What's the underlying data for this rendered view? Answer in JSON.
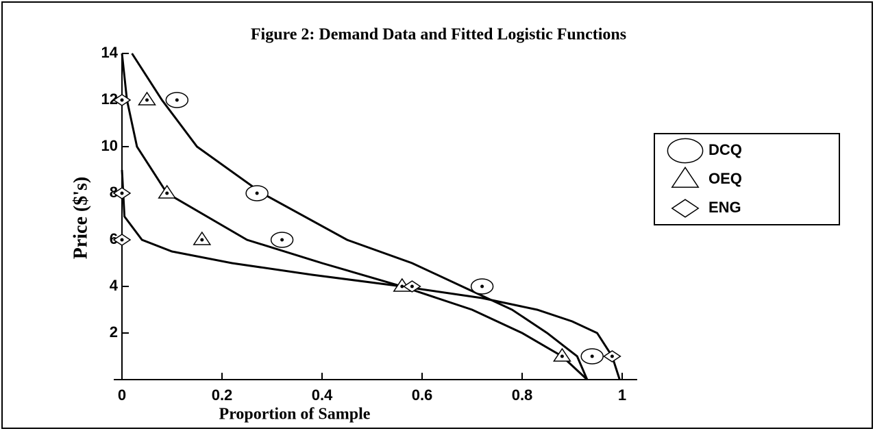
{
  "chart_data": {
    "type": "scatter",
    "title": "Figure 2:  Demand Data and Fitted Logistic Functions",
    "x_label": "Proportion of Sample",
    "y_label": "Price ($'s)",
    "xlim": [
      0,
      1.03
    ],
    "ylim": [
      0,
      14
    ],
    "xticks": [
      0,
      0.2,
      0.4,
      0.6,
      0.8,
      1
    ],
    "yticks": [
      2,
      4,
      6,
      8,
      10,
      12,
      14
    ],
    "series": [
      {
        "name": "DCQ",
        "color": "#000000",
        "marker": "circle",
        "x": [
          0.11,
          0.27,
          0.32,
          0.72,
          0.94
        ],
        "values": [
          12,
          8,
          6,
          4,
          1
        ]
      },
      {
        "name": "OEQ",
        "color": "#000000",
        "marker": "triangle",
        "x": [
          0.05,
          0.09,
          0.16,
          0.56,
          0.88
        ],
        "values": [
          12,
          8,
          6,
          4,
          1
        ]
      },
      {
        "name": "ENG",
        "color": "#000000",
        "marker": "diamond",
        "x": [
          0,
          0,
          0,
          0.58,
          0.98
        ],
        "values": [
          12,
          8,
          6,
          4,
          1
        ]
      }
    ],
    "fits": [
      {
        "color": "#000000",
        "x": [
          0.02,
          0.08,
          0.15,
          0.28,
          0.45,
          0.58,
          0.68,
          0.78,
          0.85,
          0.91,
          0.93
        ],
        "values": [
          14,
          12,
          10,
          8,
          6,
          5,
          4,
          3,
          2,
          1,
          0
        ]
      },
      {
        "color": "#000000",
        "x": [
          0.0,
          0.01,
          0.03,
          0.09,
          0.25,
          0.4,
          0.56,
          0.7,
          0.8,
          0.88,
          0.93
        ],
        "values": [
          14,
          12,
          10,
          8,
          6,
          5,
          4,
          3,
          2,
          1,
          0
        ]
      },
      {
        "color": "#000000",
        "x": [
          0.0,
          0.005,
          0.04,
          0.1,
          0.22,
          0.38,
          0.56,
          0.72,
          0.83,
          0.9,
          0.95,
          0.98,
          0.995
        ],
        "values": [
          9,
          7,
          6,
          5.5,
          5,
          4.5,
          4,
          3.5,
          3,
          2.5,
          2,
          1,
          0
        ]
      }
    ]
  }
}
